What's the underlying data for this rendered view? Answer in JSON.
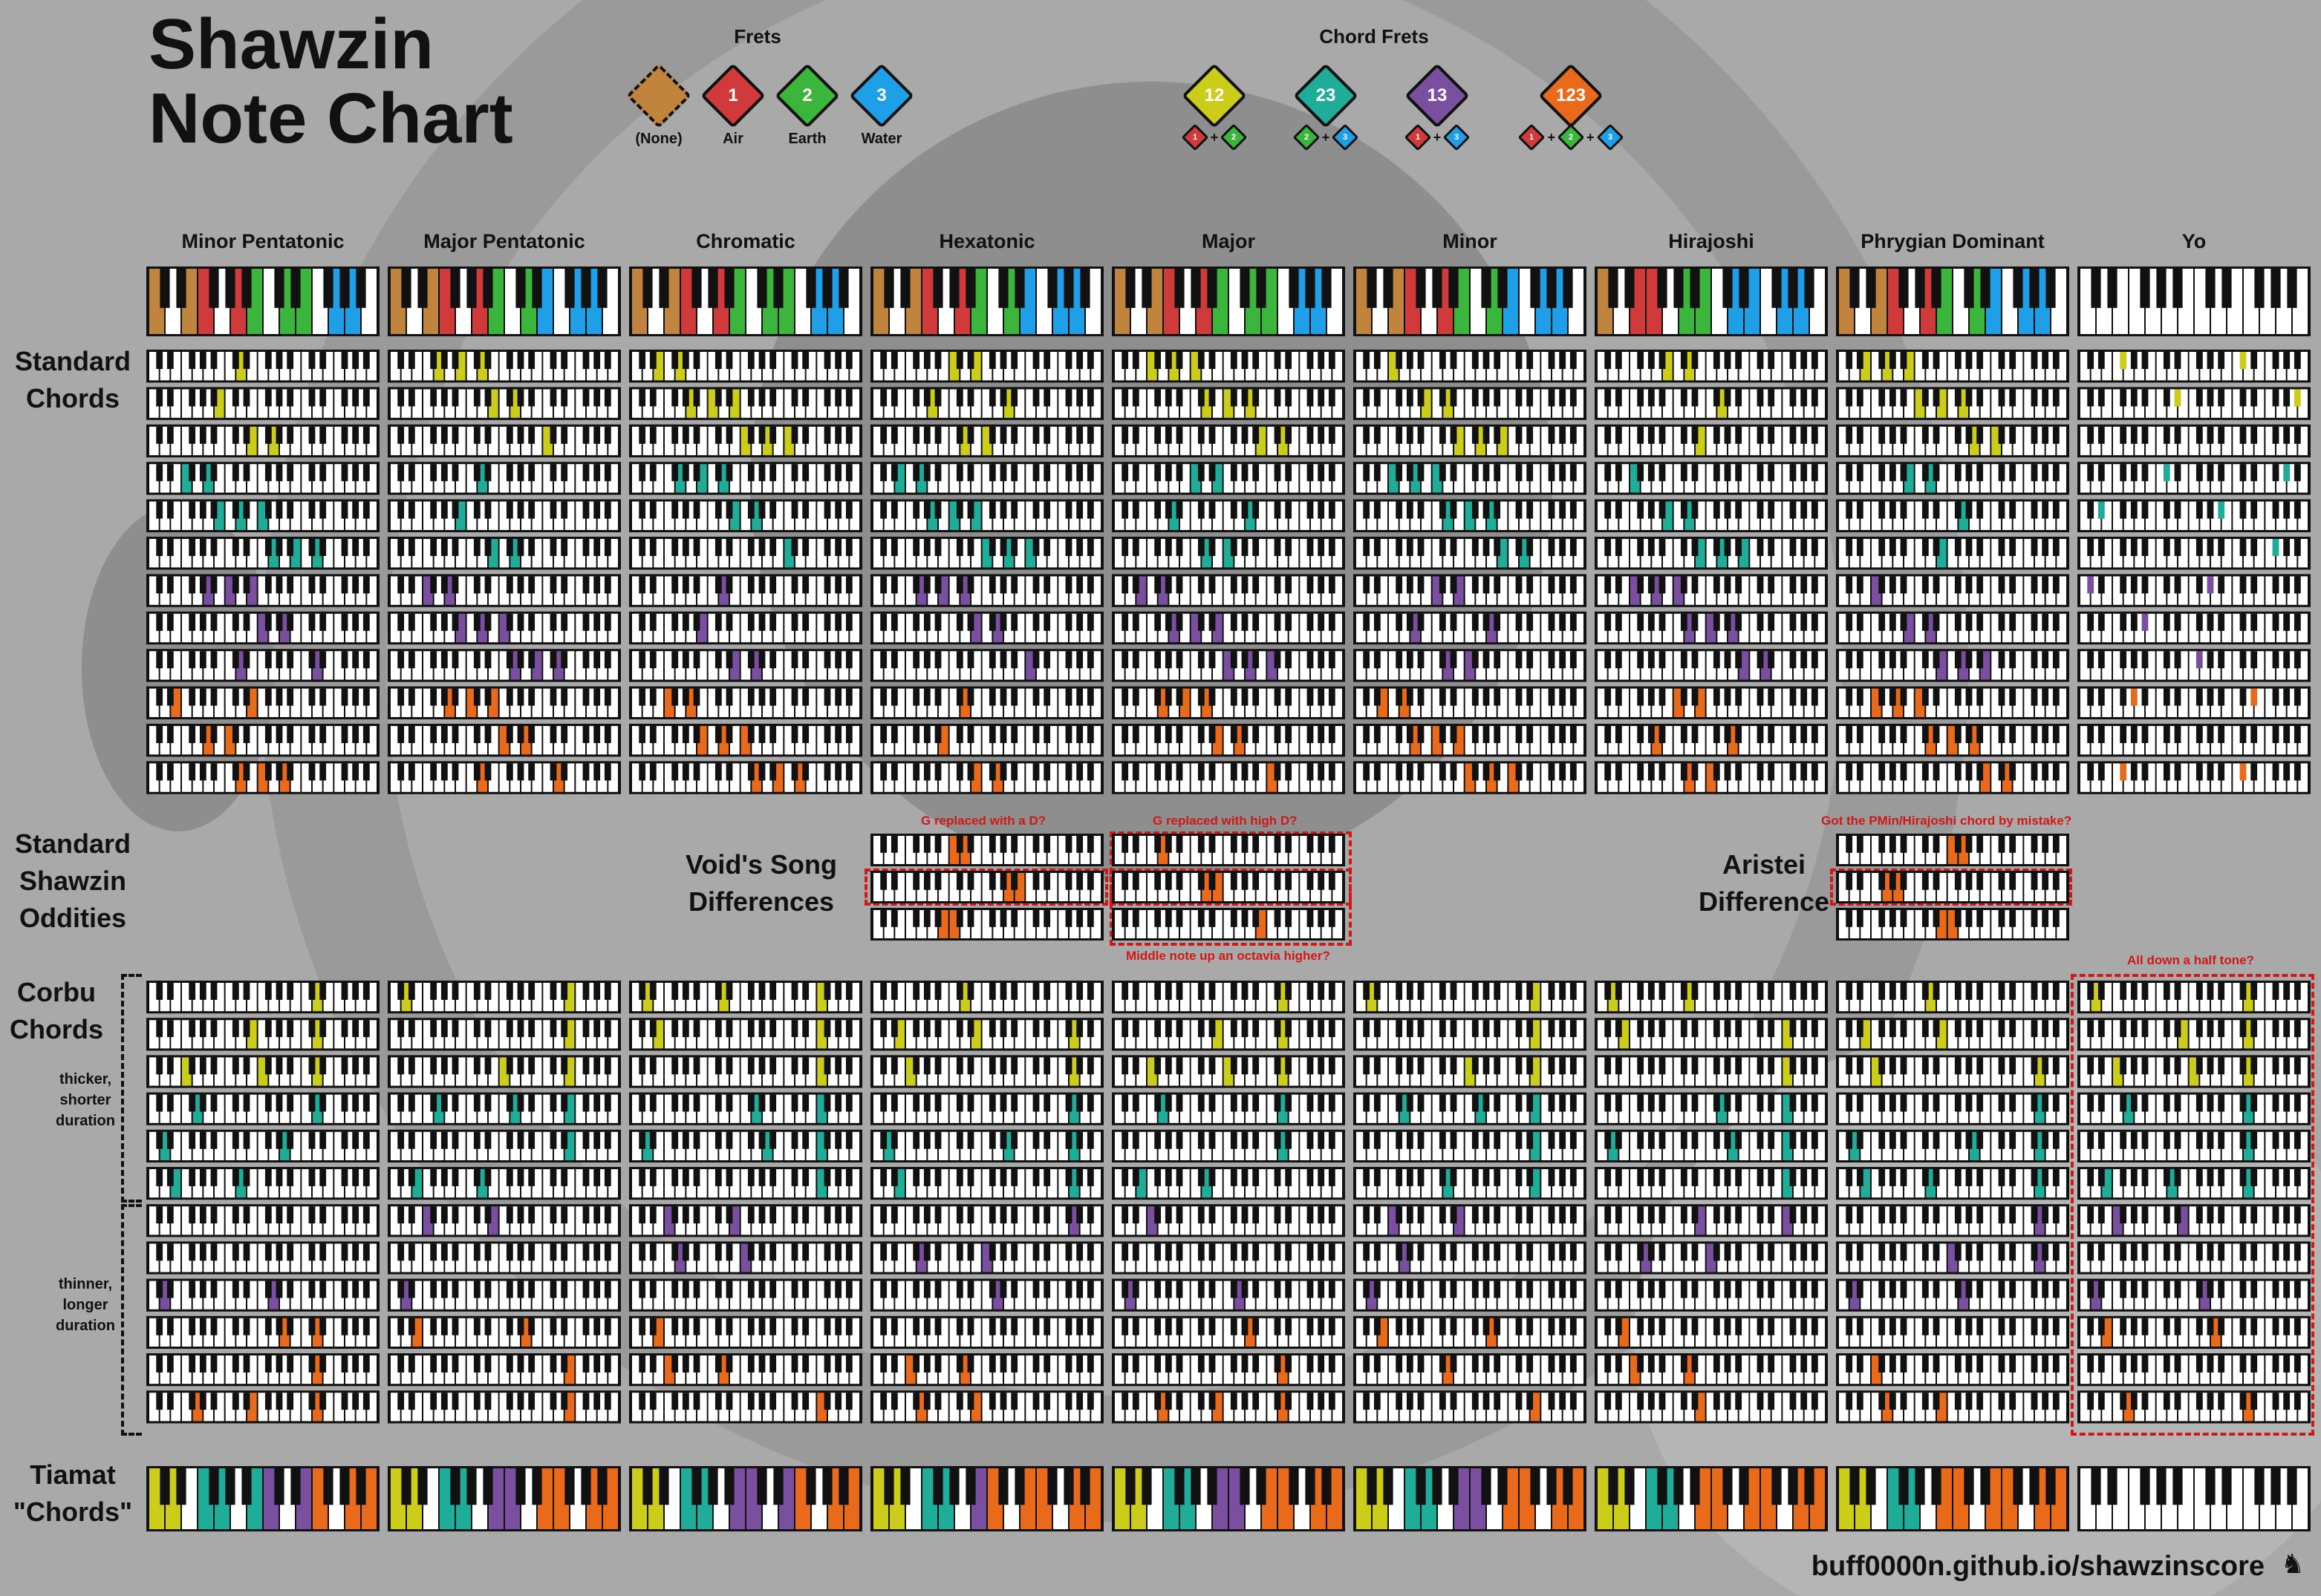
{
  "title": {
    "line1": "Shawzin",
    "line2": "Note Chart"
  },
  "frets": {
    "heading": "Frets",
    "items": [
      {
        "number": "",
        "label": "(None)",
        "color": "#c0843f"
      },
      {
        "number": "1",
        "label": "Air",
        "color": "#d03a3a"
      },
      {
        "number": "2",
        "label": "Earth",
        "color": "#3cb53c"
      },
      {
        "number": "3",
        "label": "Water",
        "color": "#1e9fe8"
      }
    ]
  },
  "chord_frets": {
    "heading": "Chord Frets",
    "items": [
      {
        "number": "12",
        "color": "#cccc1a",
        "parts": [
          "1",
          "2"
        ]
      },
      {
        "number": "23",
        "color": "#1fad9a",
        "parts": [
          "2",
          "3"
        ]
      },
      {
        "number": "13",
        "color": "#7a4fa0",
        "parts": [
          "1",
          "3"
        ]
      },
      {
        "number": "123",
        "color": "#e86a1a",
        "parts": [
          "1",
          "2",
          "3"
        ]
      }
    ]
  },
  "colors": {
    "none": "#c0843f",
    "air": "#d03a3a",
    "earth": "#3cb53c",
    "water": "#1e9fe8",
    "c12": "#cccc1a",
    "c23": "#1fad9a",
    "c13": "#7a4fa0",
    "c123": "#e86a1a"
  },
  "scales": [
    "Minor Pentatonic",
    "Major Pentatonic",
    "Chromatic",
    "Hexatonic",
    "Major",
    "Minor",
    "Hirajoshi",
    "Phrygian Dominant",
    "Yo"
  ],
  "sections": {
    "standard_chords": [
      "Standard",
      "Chords"
    ],
    "oddities": [
      "Standard",
      "Shawzin",
      "Oddities"
    ],
    "corbu": [
      "Corbu",
      "Chords"
    ],
    "tiamat": [
      "Tiamat",
      "\"Chords\""
    ]
  },
  "corbu_notes": {
    "thick": [
      "thicker,",
      "shorter",
      "duration"
    ],
    "thin": [
      "thinner,",
      "longer",
      "duration"
    ]
  },
  "voids_song": {
    "label": [
      "Void's Song",
      "Differences"
    ],
    "note1": "G replaced with a D?",
    "note2": "G replaced with high D?",
    "note3": "Middle note up an octavia higher?"
  },
  "aristei": {
    "label": [
      "Aristei",
      "Difference"
    ],
    "note": "Got the PMin/Hirajoshi chord by mistake?"
  },
  "yo_note": "All down a half tone?",
  "footer": "buff0000n.github.io/shawzinscore"
}
